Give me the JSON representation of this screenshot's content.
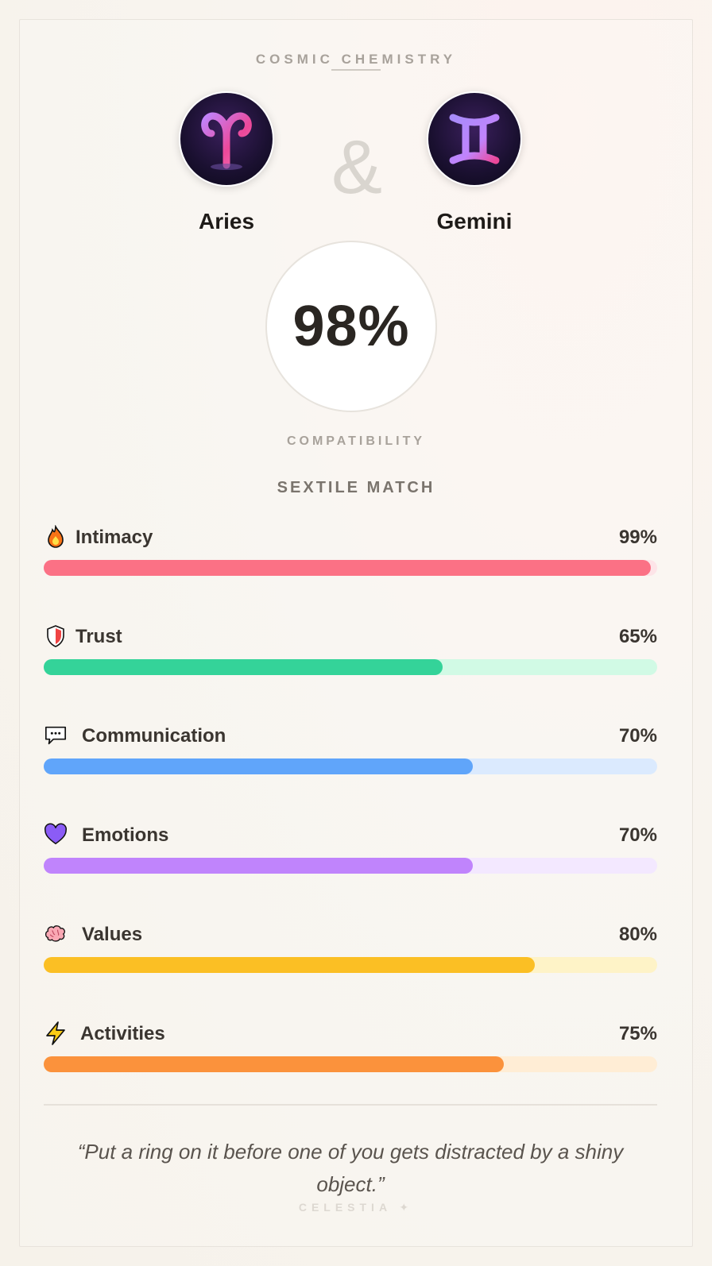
{
  "header": {
    "eyebrow": "COSMIC CHEMISTRY"
  },
  "signs": [
    {
      "name": "Aries",
      "icon": "aries-icon"
    },
    {
      "name": "Gemini",
      "icon": "gemini-icon"
    }
  ],
  "ampersand": "&",
  "score": {
    "value": "98%",
    "label": "COMPATIBILITY"
  },
  "match_type": "SEXTILE MATCH",
  "metrics": [
    {
      "label": "Intimacy",
      "value_text": "99%",
      "value": 99,
      "icon": "fire-icon",
      "color": "#fb7185",
      "track": "#fde4e8"
    },
    {
      "label": "Trust",
      "value_text": "65%",
      "value": 65,
      "icon": "shield-icon",
      "color": "#34d399",
      "track": "#d1fae5"
    },
    {
      "label": "Communication",
      "value_text": "70%",
      "value": 70,
      "icon": "speech-bubble-icon",
      "color": "#60a5fa",
      "track": "#dbeafe"
    },
    {
      "label": "Emotions",
      "value_text": "70%",
      "value": 70,
      "icon": "heart-icon",
      "color": "#c084fc",
      "track": "#f3e8ff"
    },
    {
      "label": "Values",
      "value_text": "80%",
      "value": 80,
      "icon": "brain-icon",
      "color": "#fbbf24",
      "track": "#fef3c7"
    },
    {
      "label": "Activities",
      "value_text": "75%",
      "value": 75,
      "icon": "lightning-icon",
      "color": "#fb923c",
      "track": "#ffedd5"
    }
  ],
  "quote": "“Put a ring on it before one of you gets distracted by a shiny object.”",
  "brand": "CELESTIA ✦"
}
